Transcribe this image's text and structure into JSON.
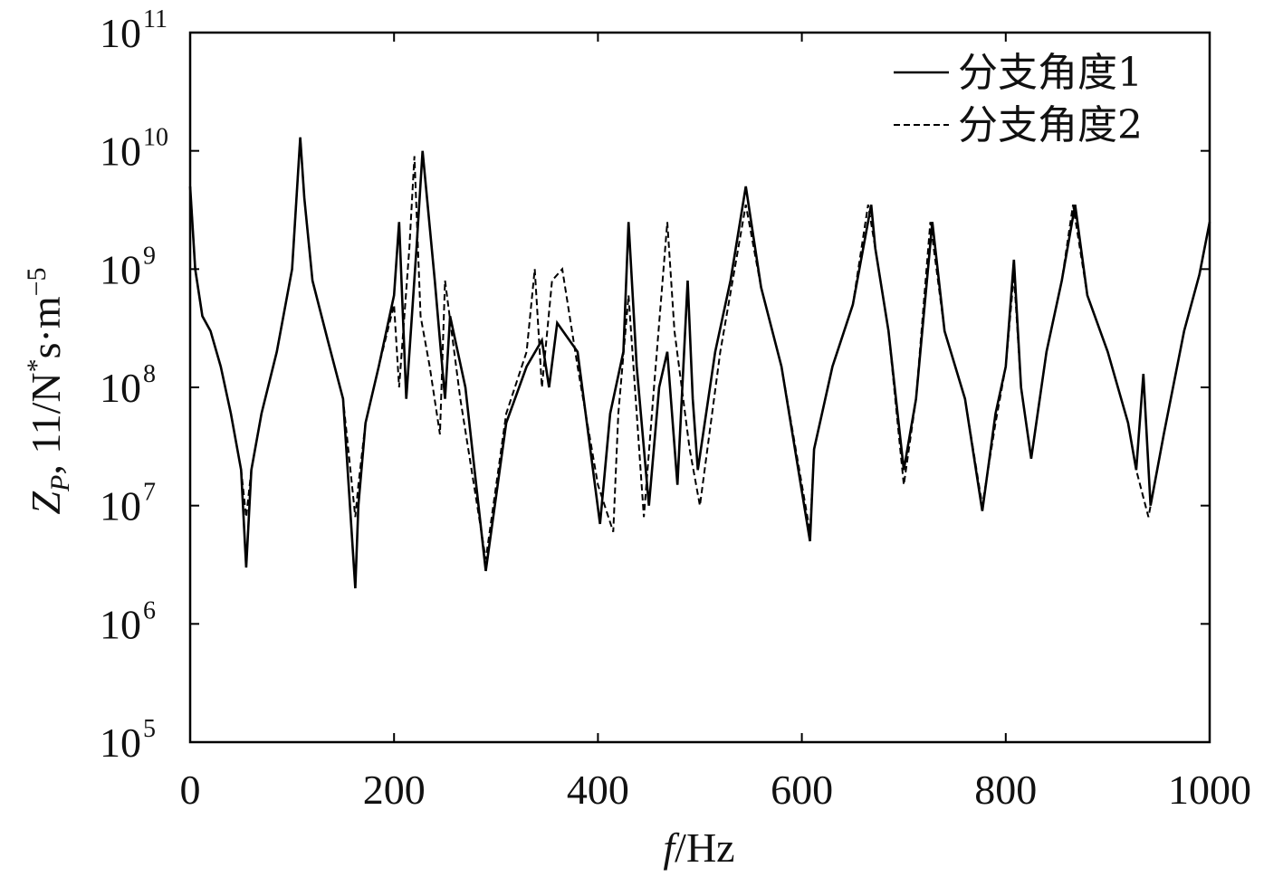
{
  "chart_data": {
    "type": "line",
    "xlabel": "f/Hz",
    "ylabel": "Z_P, 11/N*s·m−5",
    "xlim": [
      0,
      1000
    ],
    "ylim": [
      100000,
      100000000000
    ],
    "yscale": "log",
    "x_ticks": [
      "0",
      "200",
      "400",
      "600",
      "800",
      "1000"
    ],
    "y_ticks": [
      {
        "base": "10",
        "exp": "5"
      },
      {
        "base": "10",
        "exp": "6"
      },
      {
        "base": "10",
        "exp": "7"
      },
      {
        "base": "10",
        "exp": "8"
      },
      {
        "base": "10",
        "exp": "9"
      },
      {
        "base": "10",
        "exp": "10"
      },
      {
        "base": "10",
        "exp": "11"
      }
    ],
    "legend_position": "top-right",
    "grid": false,
    "series": [
      {
        "name": "分支角度1",
        "style": "solid",
        "color": "#000000",
        "x": [
          0,
          5,
          12,
          20,
          30,
          40,
          50,
          55,
          60,
          70,
          85,
          100,
          108,
          112,
          120,
          135,
          150,
          162,
          165,
          172,
          185,
          200,
          205,
          212,
          222,
          228,
          240,
          250,
          255,
          270,
          290,
          310,
          330,
          345,
          352,
          360,
          380,
          402,
          412,
          425,
          430,
          438,
          450,
          460,
          468,
          478,
          488,
          493,
          498,
          515,
          530,
          545,
          560,
          580,
          608,
          612,
          630,
          650,
          668,
          672,
          685,
          700,
          712,
          728,
          740,
          760,
          777,
          790,
          800,
          808,
          815,
          825,
          840,
          855,
          868,
          880,
          900,
          920,
          928,
          935,
          942,
          955,
          975,
          990,
          1000
        ],
        "y": [
          5000000000,
          1000000000,
          400000000,
          300000000,
          150000000,
          60000000,
          20000000,
          3000000,
          20000000,
          60000000,
          200000000,
          1000000000,
          13000000000,
          4000000000,
          800000000,
          250000000,
          80000000,
          2000000,
          10000000,
          50000000,
          150000000,
          600000000,
          2500000000,
          80000000,
          1500000000,
          10000000000,
          800000000,
          80000000,
          400000000,
          100000000,
          2800000,
          50000000,
          150000000,
          250000000,
          100000000,
          350000000,
          200000000,
          7000000,
          60000000,
          200000000,
          2500000000,
          150000000,
          10000000,
          100000000,
          200000000,
          15000000,
          800000000,
          80000000,
          20000000,
          200000000,
          800000000,
          5000000000,
          700000000,
          150000000,
          5000000,
          30000000,
          150000000,
          500000000,
          3500000000,
          1500000000,
          300000000,
          20000000,
          80000000,
          2500000000,
          300000000,
          80000000,
          9000000,
          60000000,
          150000000,
          1200000000,
          100000000,
          25000000,
          200000000,
          800000000,
          3500000000,
          600000000,
          200000000,
          50000000,
          20000000,
          130000000,
          10000000,
          40000000,
          300000000,
          900000000,
          2500000000
        ]
      },
      {
        "name": "分支角度2",
        "style": "dashed",
        "color": "#000000",
        "x": [
          0,
          5,
          12,
          20,
          30,
          40,
          50,
          55,
          60,
          70,
          85,
          100,
          108,
          112,
          120,
          135,
          150,
          162,
          165,
          172,
          185,
          200,
          205,
          215,
          220,
          226,
          235,
          245,
          250,
          265,
          290,
          310,
          330,
          338,
          345,
          355,
          365,
          380,
          400,
          415,
          420,
          430,
          445,
          455,
          468,
          475,
          490,
          500,
          520,
          545,
          560,
          580,
          608,
          612,
          630,
          650,
          665,
          672,
          685,
          700,
          712,
          726,
          740,
          760,
          777,
          790,
          800,
          808,
          815,
          825,
          840,
          855,
          866,
          880,
          900,
          920,
          928,
          940,
          955,
          975,
          990,
          1000
        ],
        "y": [
          5000000000,
          1000000000,
          400000000,
          300000000,
          150000000,
          60000000,
          20000000,
          8000000,
          20000000,
          60000000,
          200000000,
          1000000000,
          13000000000,
          4000000000,
          800000000,
          250000000,
          80000000,
          8000000,
          15000000,
          50000000,
          150000000,
          500000000,
          100000000,
          1500000000,
          9000000000,
          400000000,
          150000000,
          40000000,
          800000000,
          80000000,
          3500000,
          60000000,
          200000000,
          1000000000,
          100000000,
          800000000,
          1000000000,
          150000000,
          15000000,
          6000000,
          60000000,
          600000000,
          8000000,
          100000000,
          2500000000,
          300000000,
          30000000,
          10000000,
          200000000,
          3500000000,
          700000000,
          150000000,
          6000000,
          30000000,
          150000000,
          500000000,
          3500000000,
          1500000000,
          300000000,
          15000000,
          80000000,
          2500000000,
          300000000,
          80000000,
          10000000,
          50000000,
          150000000,
          900000000,
          100000000,
          25000000,
          200000000,
          800000000,
          3500000000,
          600000000,
          200000000,
          50000000,
          20000000,
          8000000,
          40000000,
          300000000,
          900000000,
          2500000000
        ]
      }
    ]
  }
}
